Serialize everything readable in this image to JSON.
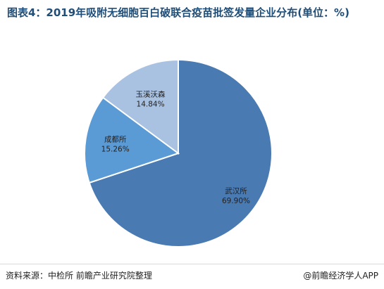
{
  "title": "图表4：2019年吸附无细胞百白破联合疫苗批签发量企业分布(单位：%)",
  "source": "资料来源：中检所 前瞻产业研究院整理",
  "brand": "@前瞻经济学人APP",
  "chart_data": {
    "type": "pie",
    "title": "图表4：2019年吸附无细胞百白破联合疫苗批签发量企业分布(单位：%)",
    "categories": [
      "武汉所",
      "成都所",
      "玉溪沃森"
    ],
    "values": [
      69.9,
      15.26,
      14.84
    ],
    "value_labels": [
      "69.90%",
      "15.26%",
      "14.84%"
    ],
    "colors": [
      "#4a7ab2",
      "#5b9bd5",
      "#a9c2e2"
    ],
    "legend": "none"
  }
}
